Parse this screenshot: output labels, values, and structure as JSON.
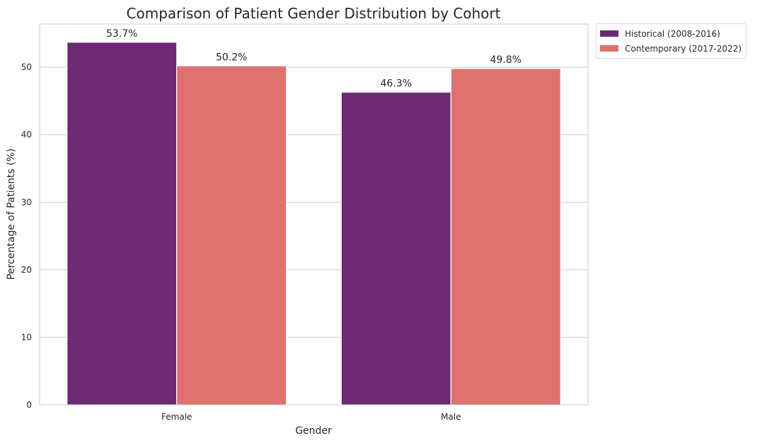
{
  "chart_data": {
    "type": "bar",
    "title": "Comparison of Patient Gender Distribution by Cohort",
    "xlabel": "Gender",
    "ylabel": "Percentage of Patients (%)",
    "categories": [
      "Female",
      "Male"
    ],
    "series": [
      {
        "name": "Historical (2008-2016)",
        "color": "#6b2a73",
        "values": [
          53.7,
          46.3
        ],
        "labels": [
          "53.7%",
          "46.3%"
        ]
      },
      {
        "name": "Contemporary (2017-2022)",
        "color": "#df716e",
        "values": [
          50.2,
          49.8
        ],
        "labels": [
          "50.2%",
          "49.8%"
        ]
      }
    ],
    "ylim": [
      0,
      56.4
    ],
    "yticks": [
      0,
      10,
      20,
      30,
      40,
      50
    ],
    "grid": "horizontal",
    "legend": "outside-top-right"
  }
}
